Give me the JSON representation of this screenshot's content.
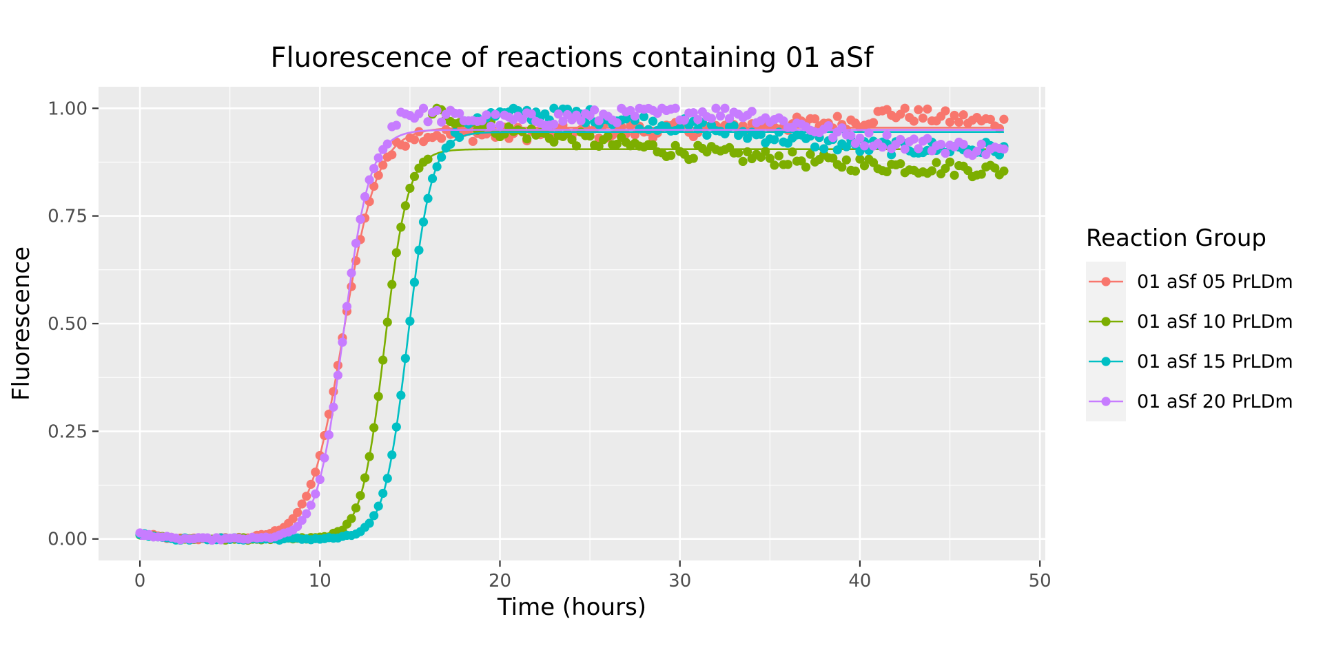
{
  "chart_data": {
    "type": "scatter",
    "title": "Fluorescence of reactions containing 01 aSf",
    "xlabel": "Time (hours)",
    "ylabel": "Fluorescence",
    "xlim": [
      -2.3,
      50.3
    ],
    "ylim": [
      -0.05,
      1.05
    ],
    "x_ticks": [
      0,
      10,
      20,
      30,
      40,
      50
    ],
    "x_tick_labels": [
      "0",
      "10",
      "20",
      "30",
      "40",
      "50"
    ],
    "y_ticks": [
      0,
      0.25,
      0.5,
      0.75,
      1.0
    ],
    "y_tick_labels": [
      "0.00",
      "0.25",
      "0.50",
      "0.75",
      "1.00"
    ],
    "grid": true,
    "legend": {
      "title": "Reaction Group",
      "position": "right"
    },
    "sample_interval_hours": 0.25,
    "series": [
      {
        "name": "01 aSf 05 PrLDm",
        "color": "#F8766D",
        "fit": {
          "t50": 11.3,
          "slope": 1.05,
          "plateau": 0.955,
          "end_value": 0.965
        },
        "points": [
          [
            0,
            0.02
          ],
          [
            10,
            0.22
          ],
          [
            11.5,
            0.52
          ],
          [
            13,
            0.85
          ],
          [
            15,
            0.94
          ],
          [
            20,
            0.94
          ],
          [
            30,
            0.95
          ],
          [
            40,
            0.97
          ],
          [
            41.5,
            0.99
          ],
          [
            48,
            0.965
          ]
        ]
      },
      {
        "name": "01 aSf 10 PrLDm",
        "color": "#7CAE00",
        "fit": {
          "t50": 13.6,
          "slope": 1.55,
          "plateau": 0.905,
          "end_value": 0.855
        },
        "points": [
          [
            0,
            0.01
          ],
          [
            12,
            0.14
          ],
          [
            13.6,
            0.5
          ],
          [
            15,
            0.9
          ],
          [
            16.5,
            0.99
          ],
          [
            20,
            0.95
          ],
          [
            30,
            0.9
          ],
          [
            40,
            0.87
          ],
          [
            48,
            0.855
          ]
        ]
      },
      {
        "name": "01 aSf 15 PrLDm",
        "color": "#00BFC4",
        "fit": {
          "t50": 14.9,
          "slope": 1.5,
          "plateau": 0.945,
          "end_value": 0.905
        },
        "points": [
          [
            0,
            0.0
          ],
          [
            13,
            0.12
          ],
          [
            14.9,
            0.5
          ],
          [
            16.5,
            0.88
          ],
          [
            18.5,
            0.98
          ],
          [
            23,
            0.99
          ],
          [
            30,
            0.96
          ],
          [
            40,
            0.91
          ],
          [
            48,
            0.905
          ]
        ]
      },
      {
        "name": "01 aSf 20 PrLDm",
        "color": "#C77CFF",
        "fit": {
          "t50": 11.3,
          "slope": 1.35,
          "plateau": 0.95,
          "end_value": 0.9
        },
        "points": [
          [
            0,
            0.0
          ],
          [
            10,
            0.17
          ],
          [
            11.3,
            0.5
          ],
          [
            13,
            0.9
          ],
          [
            14.5,
            0.99
          ],
          [
            20,
            0.97
          ],
          [
            30,
            0.99
          ],
          [
            33.5,
            0.99
          ],
          [
            40,
            0.93
          ],
          [
            48,
            0.9
          ]
        ]
      }
    ]
  }
}
